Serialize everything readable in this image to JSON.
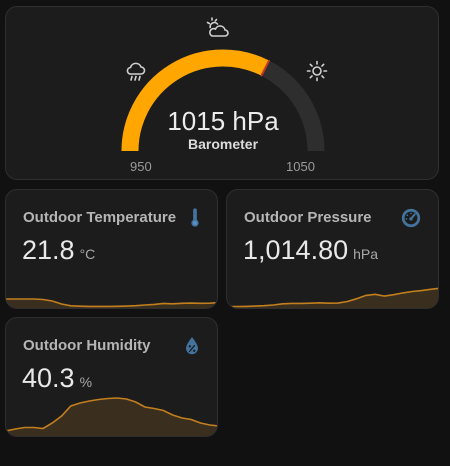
{
  "colors": {
    "accent": "#ffa600",
    "track": "#2e2e2e",
    "sparkline": "#c27f1e",
    "icon_blue": "#44739e",
    "card_bg": "#1c1c1c",
    "page_bg": "#111111"
  },
  "barometer": {
    "value": "1015 hPa",
    "label": "Barometer",
    "min_label": "950",
    "max_label": "1050",
    "min": 950,
    "max": 1050,
    "reading": 1015,
    "icons": [
      "partly-cloudy-icon",
      "rain-cloud-icon",
      "sun-icon"
    ]
  },
  "sensors": {
    "temperature": {
      "name": "Outdoor Temperature",
      "value": "21.8",
      "unit": "°C",
      "icon": "thermometer-icon",
      "history": [
        9,
        9,
        9,
        9,
        8.5,
        7,
        4,
        2.2,
        1.8,
        1.6,
        1.6,
        1.6,
        1.7,
        1.9,
        2.3,
        3,
        3.6,
        4.6,
        4.2,
        4.7,
        4.9,
        4.7,
        4.8,
        5.4
      ]
    },
    "pressure": {
      "name": "Outdoor Pressure",
      "value": "1,014.80",
      "unit": "hPa",
      "icon": "gauge-icon",
      "history": [
        1.5,
        1.5,
        1.6,
        1.9,
        2.3,
        3,
        4.2,
        4.6,
        4.6,
        4.8,
        5.2,
        4.8,
        4.9,
        6.5,
        9.3,
        12.6,
        13.7,
        11.9,
        13.3,
        15.1,
        16.5,
        17.4,
        18.7,
        19.8
      ]
    },
    "humidity": {
      "name": "Outdoor Humidity",
      "value": "40.3",
      "unit": "%",
      "icon": "water-percent-icon",
      "history": [
        5,
        7,
        8.5,
        8.5,
        7.5,
        13,
        20,
        30,
        33,
        35,
        36.5,
        37.5,
        38,
        37,
        34,
        29,
        27.5,
        25.5,
        21,
        18,
        16.5,
        13,
        11,
        10
      ]
    }
  }
}
